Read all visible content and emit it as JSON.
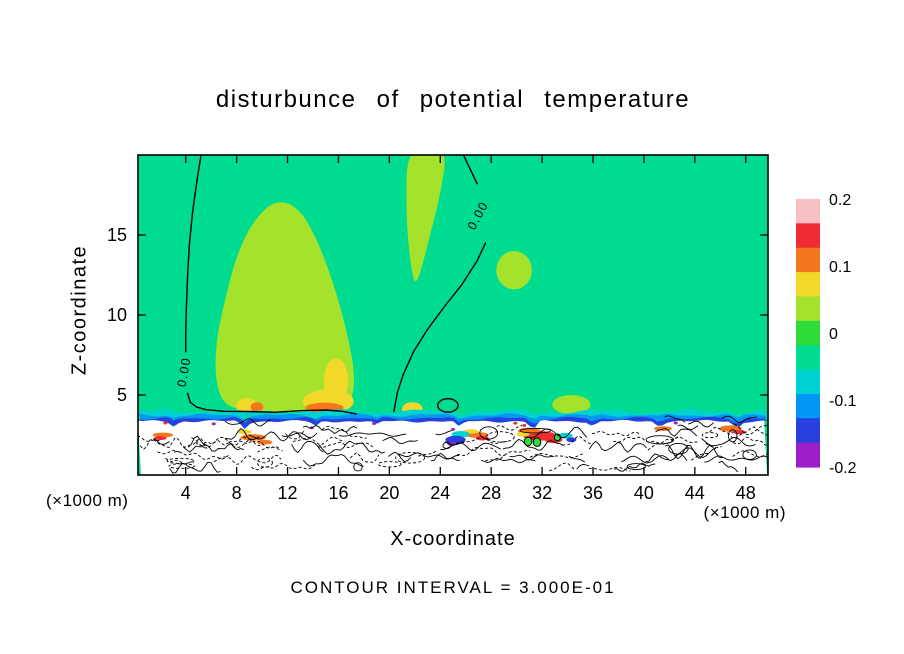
{
  "page": {
    "background": "#FFFFFF"
  },
  "chart_data": {
    "type": "heatmap",
    "title": "disturbunce of potential temperature",
    "xlabel": "X-coordinate",
    "ylabel": "Z-coordinate",
    "x_axis_unit": "(×1000 m)",
    "y_axis_unit": "(×1000 m)",
    "x_ticks": [
      4,
      8,
      12,
      16,
      20,
      24,
      28,
      32,
      36,
      40,
      44,
      48
    ],
    "y_ticks": [
      5,
      10,
      15
    ],
    "xlim": [
      0.25,
      49.75
    ],
    "ylim": [
      0,
      20
    ],
    "grid": false,
    "contour_note": "CONTOUR INTERVAL = 3.000E-01",
    "contour_interval": 0.3,
    "zero_contour_label": "0.00",
    "colorbar": {
      "position": "right",
      "tick_labels": [
        "0.2",
        "0.1",
        "0",
        "-0.1",
        "-0.2"
      ],
      "tick_values": [
        0.2,
        0.1,
        0,
        -0.1,
        -0.2
      ],
      "colors_top_to_bottom": [
        "#F7BFC4",
        "#EF2B33",
        "#F4761F",
        "#F2D829",
        "#A4E22B",
        "#2FDD3A",
        "#00DC8F",
        "#00D2D2",
        "#0098F2",
        "#2A3FE0",
        "#9C1FC8"
      ]
    },
    "field": {
      "base_color": "#00DC8F",
      "description": "near-zero disturbance (green) aloft with two 0.00 contour lines; thin negative inversion band (cyan/blue) at z≈3.3–3.9; turbulent boundary layer of fine-scale solid/dashed contours with scattered warm (red/orange) and cold (blue/purple) pockets below z≈3.3"
    }
  }
}
